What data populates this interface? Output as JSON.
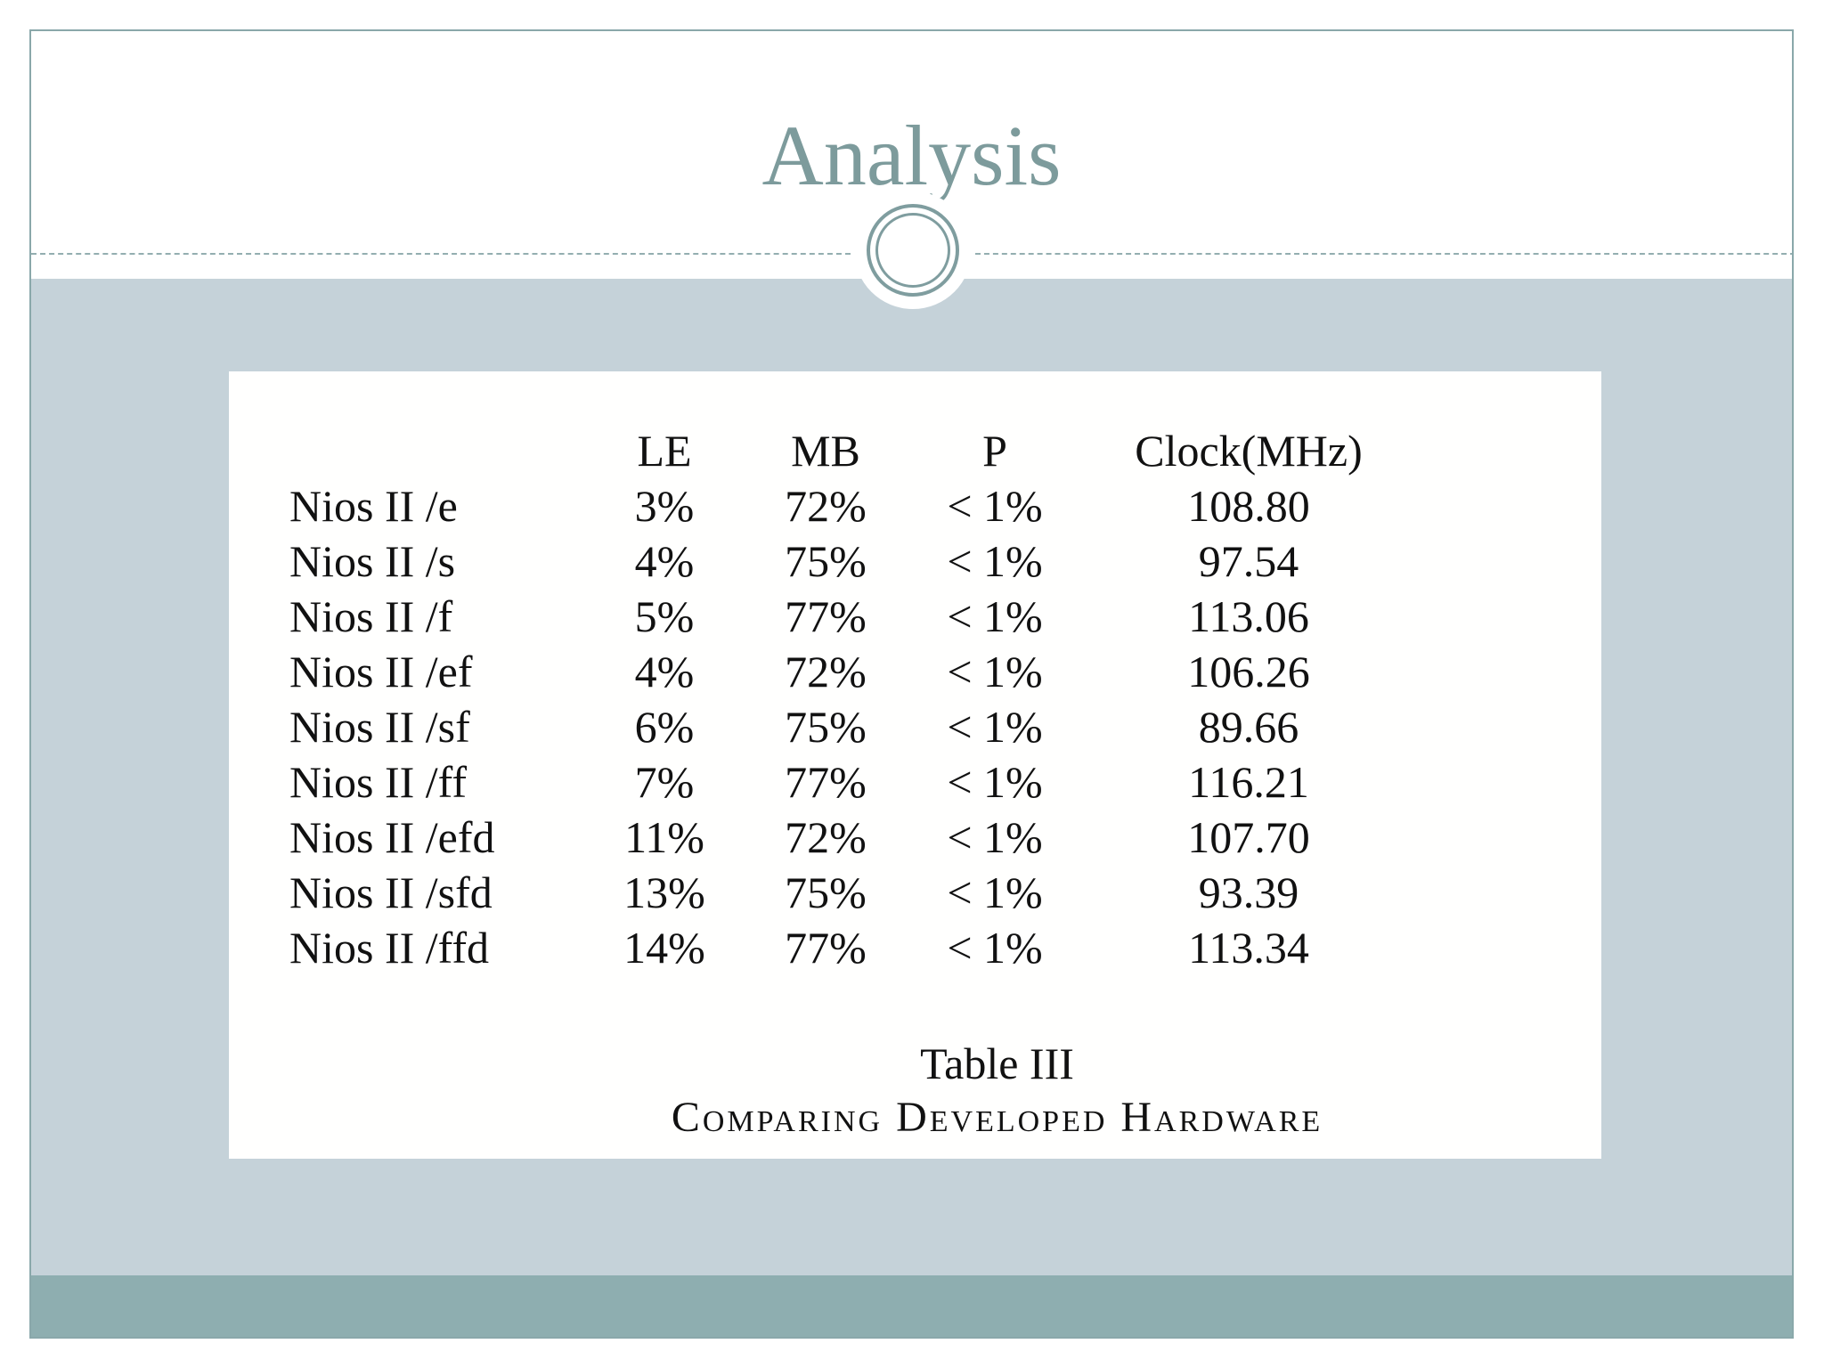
{
  "slide": {
    "title": "Analysis"
  },
  "table": {
    "headers": [
      "",
      "LE",
      "MB",
      "P",
      "Clock(MHz)"
    ],
    "rows": [
      {
        "name": "Nios II /e",
        "le": "3%",
        "mb": "72%",
        "p": "< 1%",
        "clock": "108.80"
      },
      {
        "name": "Nios II /s",
        "le": "4%",
        "mb": "75%",
        "p": "< 1%",
        "clock": "97.54"
      },
      {
        "name": "Nios II /f",
        "le": "5%",
        "mb": "77%",
        "p": "< 1%",
        "clock": "113.06"
      },
      {
        "name": "Nios II /ef",
        "le": "4%",
        "mb": "72%",
        "p": "< 1%",
        "clock": "106.26"
      },
      {
        "name": "Nios II /sf",
        "le": "6%",
        "mb": "75%",
        "p": "< 1%",
        "clock": "89.66"
      },
      {
        "name": "Nios II /ff",
        "le": "7%",
        "mb": "77%",
        "p": "< 1%",
        "clock": "116.21"
      },
      {
        "name": "Nios II /efd",
        "le": "11%",
        "mb": "72%",
        "p": "< 1%",
        "clock": "107.70"
      },
      {
        "name": "Nios II /sfd",
        "le": "13%",
        "mb": "75%",
        "p": "< 1%",
        "clock": "93.39"
      },
      {
        "name": "Nios II /ffd",
        "le": "14%",
        "mb": "77%",
        "p": "< 1%",
        "clock": "113.34"
      }
    ],
    "caption_line1": "Table III",
    "caption_line2": "Comparing Developed Hardware"
  },
  "colors": {
    "title": "#7d9b9c",
    "content_background": "#c5d2d9",
    "footer_band": "#8eaeb0",
    "frame_border": "#8aa8aa"
  }
}
